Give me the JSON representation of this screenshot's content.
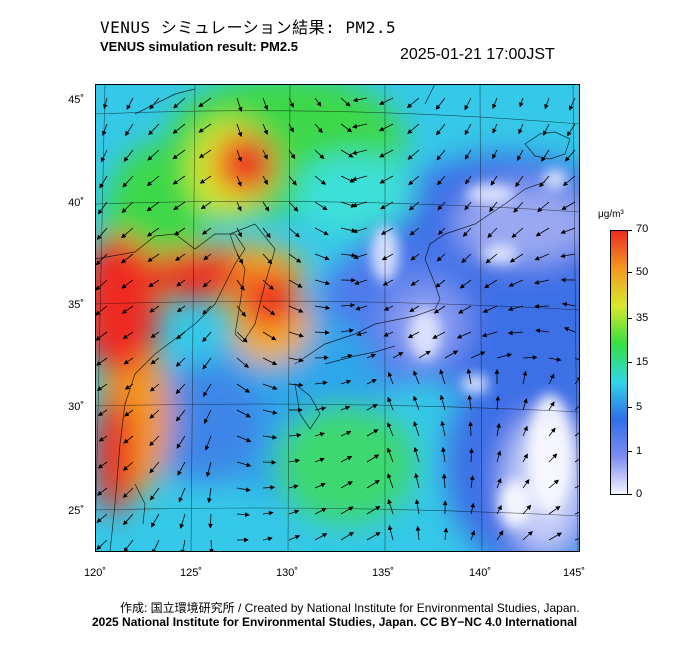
{
  "header": {
    "title_jp": "VENUS シミュレーション結果: PM2.5",
    "title_en": "VENUS simulation result: PM2.5",
    "timestamp": "2025-01-21 17:00JST"
  },
  "map": {
    "lat_labels": [
      "45˚",
      "40˚",
      "35˚",
      "30˚",
      "25˚"
    ],
    "lon_labels": [
      "120˚",
      "125˚",
      "130˚",
      "135˚",
      "140˚",
      "145˚"
    ],
    "field_description": "PM2.5 concentration shading with wind arrows"
  },
  "colorbar": {
    "unit": "μg/m³",
    "labels": [
      "70",
      "50",
      "35",
      "15",
      "5",
      "1",
      "0"
    ],
    "colors": [
      "#f4f4ff",
      "#7a8cf0",
      "#2f6fe8",
      "#2fd6e8",
      "#35e040",
      "#d8e82a",
      "#f29a22",
      "#ee2a22"
    ]
  },
  "footer": {
    "credit_line": "作成: 国立環境研究所 / Created by National Institute for Environmental Studies, Japan.",
    "copyright_line": "2025 National Institute for Environmental Studies, Japan. CC BY−NC 4.0 International"
  }
}
